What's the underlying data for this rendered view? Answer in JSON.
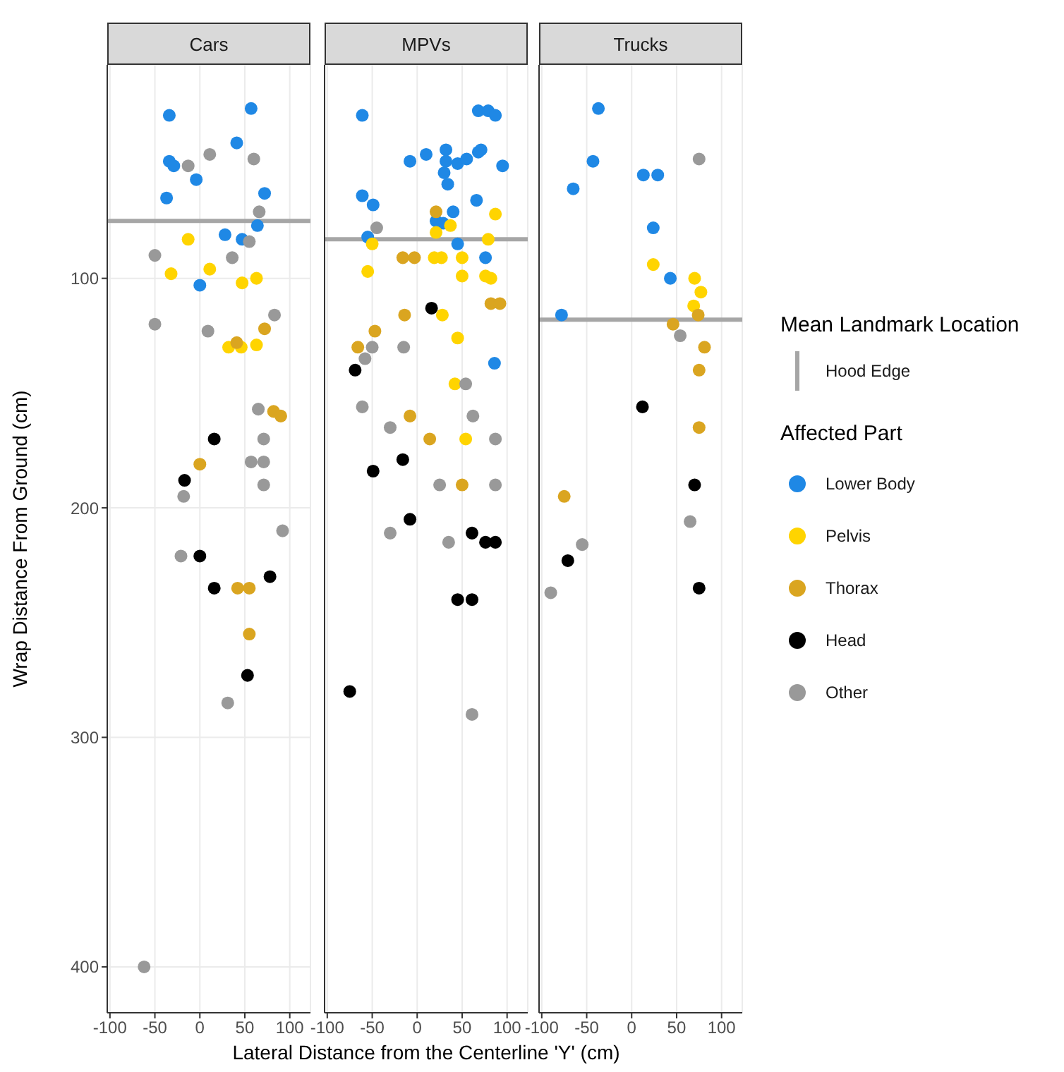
{
  "chart_data": [
    {
      "type": "scatter",
      "title": "Cars",
      "ylabel": "Wrap Distance From Ground  (cm)",
      "xlim": [
        -103,
        123
      ],
      "xticks": [
        -100,
        -50,
        0,
        50,
        100
      ],
      "ylim": [
        420,
        7
      ],
      "yticks": [
        100,
        200,
        300,
        400
      ],
      "grid": true,
      "marker": "circle",
      "ref_lines": [
        {
          "axis": "y",
          "value": 75,
          "color": "#a6a6a6"
        }
      ],
      "series": [
        {
          "color": "#1f88e5",
          "x": [
            -34,
            57,
            41,
            -34,
            -29,
            -4,
            -37,
            72,
            64,
            28,
            47,
            0
          ],
          "values": [
            29,
            26,
            41,
            49,
            51,
            57,
            65,
            63,
            77,
            81,
            83,
            103
          ]
        },
        {
          "color": "#ffd400",
          "x": [
            -13,
            -32,
            11,
            47,
            63,
            32,
            46,
            63
          ],
          "values": [
            83,
            98,
            96,
            102,
            100,
            130,
            130,
            129
          ]
        },
        {
          "color": "#daa520",
          "x": [
            41,
            72,
            82,
            90,
            0,
            42,
            55,
            55
          ],
          "values": [
            128,
            122,
            158,
            160,
            181,
            235,
            235,
            255
          ]
        },
        {
          "color": "#000000",
          "x": [
            16,
            -17,
            0,
            78,
            16,
            53
          ],
          "values": [
            170,
            188,
            221,
            230,
            235,
            273
          ]
        },
        {
          "color": "#999999",
          "x": [
            -13,
            11,
            60,
            66,
            55,
            -50,
            36,
            -50,
            9,
            83,
            65,
            71,
            57,
            71,
            71,
            -18,
            92,
            -21,
            31,
            -62
          ],
          "values": [
            51,
            46,
            48,
            71,
            84,
            90,
            91,
            120,
            123,
            116,
            157,
            170,
            180,
            180,
            190,
            195,
            210,
            221,
            285,
            400
          ]
        }
      ]
    },
    {
      "type": "scatter",
      "title": "MPVs",
      "xlabel": "Lateral Distance from the Centerline 'Y' (cm)",
      "xlim": [
        -103,
        123
      ],
      "xticks": [
        -100,
        -50,
        0,
        50,
        100
      ],
      "ylim": [
        420,
        7
      ],
      "yticks": [
        100,
        200,
        300,
        400
      ],
      "tick_labels": "x",
      "grid": true,
      "marker": "circle",
      "ref_lines": [
        {
          "axis": "y",
          "value": 83,
          "color": "#a6a6a6"
        }
      ],
      "series": [
        {
          "color": "#1f88e5",
          "x": [
            -61,
            68,
            79,
            87,
            -8,
            10,
            32,
            32,
            45,
            55,
            68,
            71,
            30,
            34,
            95,
            -61,
            -49,
            66,
            40,
            21,
            29,
            -55,
            45,
            76,
            86
          ],
          "values": [
            29,
            27,
            27,
            29,
            49,
            46,
            44,
            49,
            50,
            48,
            45,
            44,
            54,
            59,
            51,
            64,
            68,
            66,
            71,
            75,
            76,
            82,
            85,
            91,
            137
          ]
        },
        {
          "color": "#ffd400",
          "x": [
            87,
            21,
            37,
            79,
            -50,
            19,
            27,
            50,
            -55,
            50,
            76,
            82,
            28,
            45,
            42,
            54
          ],
          "values": [
            72,
            80,
            77,
            83,
            85,
            91,
            91,
            91,
            97,
            99,
            99,
            100,
            116,
            126,
            146,
            170
          ]
        },
        {
          "color": "#daa520",
          "x": [
            21,
            -16,
            -3,
            82,
            92,
            -14,
            -47,
            -66,
            -8,
            14,
            50
          ],
          "values": [
            71,
            91,
            91,
            111,
            111,
            116,
            123,
            130,
            160,
            170,
            190
          ]
        },
        {
          "color": "#000000",
          "x": [
            16,
            -69,
            -16,
            -49,
            -8,
            61,
            76,
            87,
            45,
            61,
            -75
          ],
          "values": [
            113,
            140,
            179,
            184,
            205,
            211,
            215,
            215,
            240,
            240,
            280
          ]
        },
        {
          "color": "#999999",
          "x": [
            -45,
            -50,
            -58,
            -15,
            54,
            -61,
            62,
            -30,
            87,
            25,
            87,
            -30,
            35,
            61
          ],
          "values": [
            78,
            130,
            135,
            130,
            146,
            156,
            160,
            165,
            170,
            190,
            190,
            211,
            215,
            290
          ]
        }
      ]
    },
    {
      "type": "scatter",
      "title": "Trucks",
      "legend": "right",
      "legend_title": "Affected Part",
      "annotations": [
        "Mean Landmark Location"
      ],
      "xlim": [
        -103,
        123
      ],
      "xticks": [
        -100,
        -50,
        0,
        50,
        100
      ],
      "ylim": [
        420,
        7
      ],
      "yticks": [
        100,
        200,
        300,
        400
      ],
      "tick_labels": "x",
      "grid": true,
      "marker": "circle",
      "ref_lines": [
        {
          "axis": "y",
          "value": 118,
          "label": "Hood Edge",
          "color": "#a6a6a6"
        }
      ],
      "series": [
        {
          "name": "Lower Body",
          "color": "#1f88e5",
          "x": [
            -37,
            -43,
            -65,
            13,
            29,
            24,
            43,
            -78
          ],
          "values": [
            26,
            49,
            61,
            55,
            55,
            78,
            100,
            116
          ]
        },
        {
          "name": "Pelvis",
          "color": "#ffd400",
          "x": [
            24,
            70,
            77,
            69
          ],
          "values": [
            94,
            100,
            106,
            112
          ]
        },
        {
          "name": "Thorax",
          "color": "#daa520",
          "x": [
            74,
            46,
            81,
            75,
            75,
            -75
          ],
          "values": [
            116,
            120,
            130,
            140,
            165,
            195
          ]
        },
        {
          "name": "Head",
          "color": "#000000",
          "x": [
            12,
            70,
            -71,
            75
          ],
          "values": [
            156,
            190,
            223,
            235
          ]
        },
        {
          "name": "Other",
          "color": "#999999",
          "x": [
            75,
            54,
            65,
            -55,
            -90
          ],
          "values": [
            48,
            125,
            206,
            216,
            237
          ]
        }
      ]
    }
  ]
}
